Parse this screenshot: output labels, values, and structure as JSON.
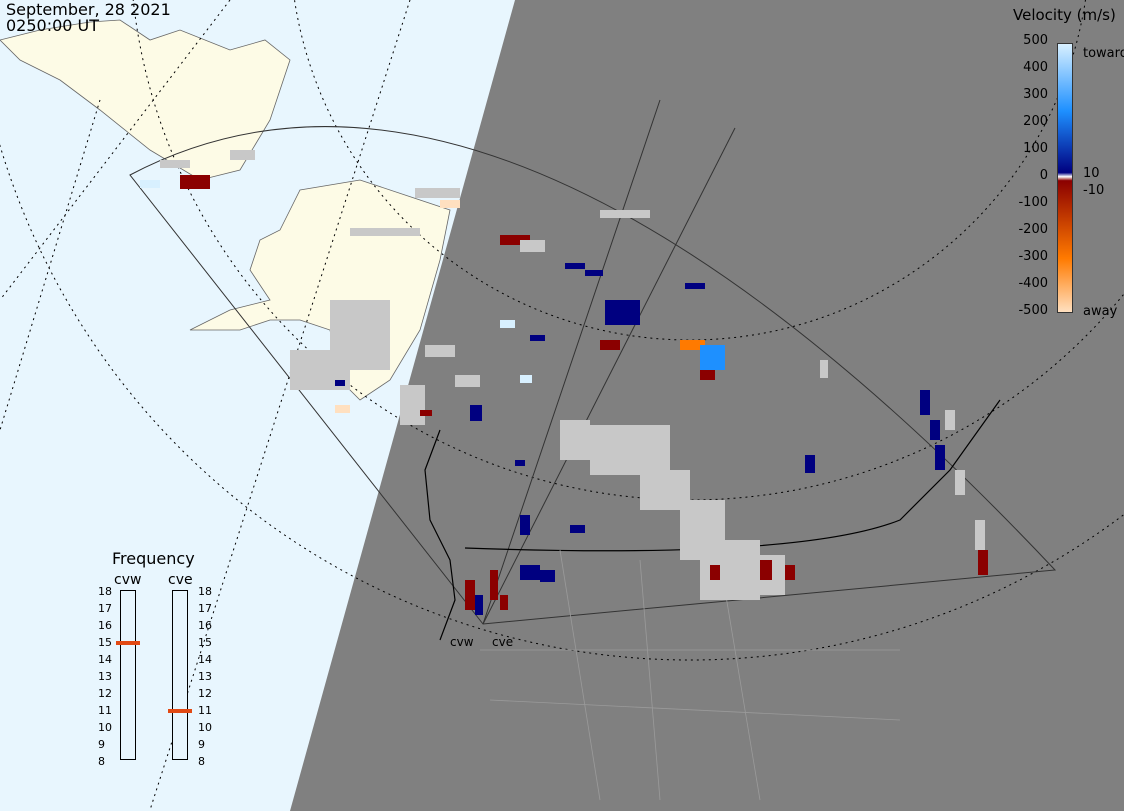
{
  "header": {
    "date": "September, 28 2021",
    "time": "0250:00 UT"
  },
  "velocity_legend": {
    "title": "Velocity (m/s)",
    "ticks": [
      "500",
      "400",
      "300",
      "200",
      "100",
      "0",
      "-100",
      "-200",
      "-300",
      "-400",
      "-500"
    ],
    "inner_labels": [
      "10",
      "-10"
    ],
    "toward_label": "toward",
    "away_label": "away",
    "colors": {
      "toward_max": "#d8f0ff",
      "toward_mid": "#1e90ff",
      "toward_low": "#000080",
      "away_low": "#8b0000",
      "away_mid": "#ff7a00",
      "away_max": "#ffe0c0",
      "ground_scatter": "#c8c8c8"
    }
  },
  "frequency_panel": {
    "title": "Frequency",
    "radars": [
      {
        "name": "cvw",
        "frequency_mhz": 15
      },
      {
        "name": "cve",
        "frequency_mhz": 11
      }
    ],
    "scale": [
      "18",
      "17",
      "16",
      "15",
      "14",
      "13",
      "12",
      "11",
      "10",
      "9",
      "8"
    ],
    "marker_color": "#e24a14"
  },
  "radar_sites": [
    {
      "name": "cvw"
    },
    {
      "name": "cve"
    }
  ],
  "map_colors": {
    "ocean": "#e8f6fe",
    "land_day": "#fdfbe6",
    "night": "#808080",
    "borders": "#000000",
    "grid": "#000000"
  }
}
